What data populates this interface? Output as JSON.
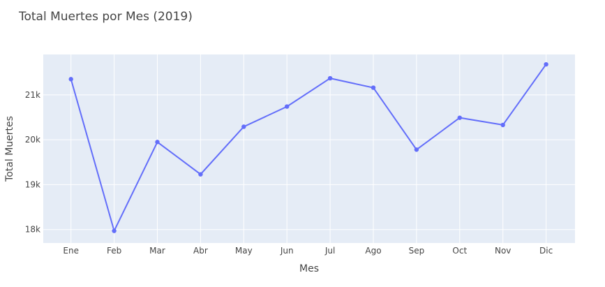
{
  "chart_data": {
    "type": "line",
    "title": "Total Muertes por Mes (2019)",
    "xlabel": "Mes",
    "ylabel": "Total Muertes",
    "categories": [
      "Ene",
      "Feb",
      "Mar",
      "Abr",
      "May",
      "Jun",
      "Jul",
      "Ago",
      "Sep",
      "Oct",
      "Nov",
      "Dic"
    ],
    "values": [
      21350,
      17970,
      19950,
      19230,
      20290,
      20740,
      21370,
      21160,
      19780,
      20490,
      20330,
      21680
    ],
    "yticks": [
      18000,
      19000,
      20000,
      21000
    ],
    "ytick_labels": [
      "18k",
      "19k",
      "20k",
      "21k"
    ],
    "ylim": [
      17700,
      21900
    ],
    "grid": true,
    "colors": {
      "line": "#636efa",
      "plot_bg": "#e5ecf6",
      "grid": "#ffffff",
      "text": "#444444"
    }
  }
}
